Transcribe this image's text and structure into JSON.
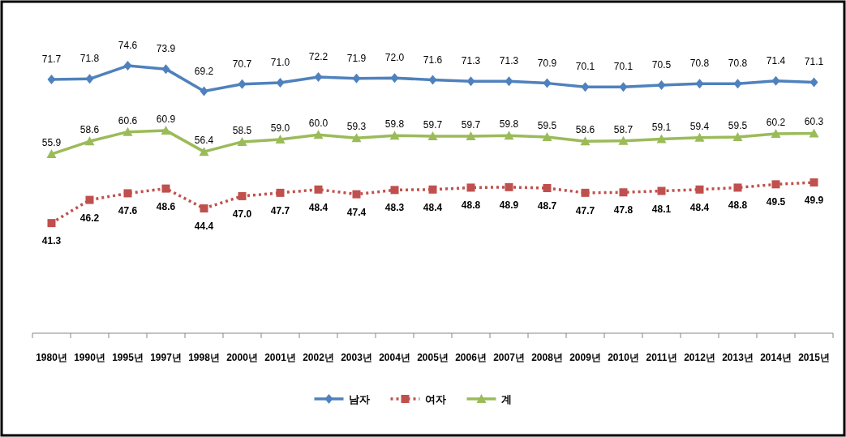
{
  "chart_data": {
    "type": "line",
    "categories": [
      "1980년",
      "1990년",
      "1995년",
      "1997년",
      "1998년",
      "2000년",
      "2001년",
      "2002년",
      "2003년",
      "2004년",
      "2005년",
      "2006년",
      "2007년",
      "2008년",
      "2009년",
      "2010년",
      "2011년",
      "2012년",
      "2013년",
      "2014년",
      "2015년"
    ],
    "series": [
      {
        "name": "남자",
        "color": "#4f81bd",
        "marker": "diamond",
        "line_style": "solid",
        "values": [
          71.7,
          71.8,
          74.6,
          73.9,
          69.2,
          70.7,
          71.0,
          72.2,
          71.9,
          72.0,
          71.6,
          71.3,
          71.3,
          70.9,
          70.1,
          70.1,
          70.5,
          70.8,
          70.8,
          71.4,
          71.1
        ],
        "value_labels": [
          "71.7",
          "71.8",
          "74.6",
          "73.9",
          "69.2",
          "70.7",
          "71.0",
          "72.2",
          "71.9",
          "72.0",
          "71.6",
          "71.3",
          "71.3",
          "70.9",
          "70.1",
          "70.1",
          "70.5",
          "70.8",
          "70.8",
          "71.4",
          "71.1"
        ]
      },
      {
        "name": "여자",
        "color": "#c0504d",
        "marker": "square",
        "line_style": "dotted",
        "values": [
          41.3,
          46.2,
          47.6,
          48.6,
          44.4,
          47.0,
          47.7,
          48.4,
          47.4,
          48.3,
          48.4,
          48.8,
          48.9,
          48.7,
          47.7,
          47.8,
          48.1,
          48.4,
          48.8,
          49.5,
          49.9
        ],
        "value_labels": [
          "41.3",
          "46.2",
          "47.6",
          "48.6",
          "44.4",
          "47.0",
          "47.7",
          "48.4",
          "47.4",
          "48.3",
          "48.4",
          "48.8",
          "48.9",
          "48.7",
          "47.7",
          "47.8",
          "48.1",
          "48.4",
          "48.8",
          "49.5",
          "49.9"
        ]
      },
      {
        "name": "계",
        "color": "#9bbb59",
        "marker": "triangle",
        "line_style": "solid",
        "values": [
          55.9,
          58.6,
          60.6,
          60.9,
          56.4,
          58.5,
          59.0,
          60.0,
          59.3,
          59.8,
          59.7,
          59.7,
          59.8,
          59.5,
          58.6,
          58.7,
          59.1,
          59.4,
          59.5,
          60.2,
          60.3
        ],
        "value_labels": [
          "55.9",
          "58.6",
          "60.6",
          "60.9",
          "56.4",
          "58.5",
          "59.0",
          "60.0",
          "59.3",
          "59.8",
          "59.7",
          "59.7",
          "59.8",
          "59.5",
          "58.6",
          "58.7",
          "59.1",
          "59.4",
          "59.5",
          "60.2",
          "60.3"
        ]
      }
    ],
    "legend": "bottom",
    "tick_labels": "x"
  }
}
